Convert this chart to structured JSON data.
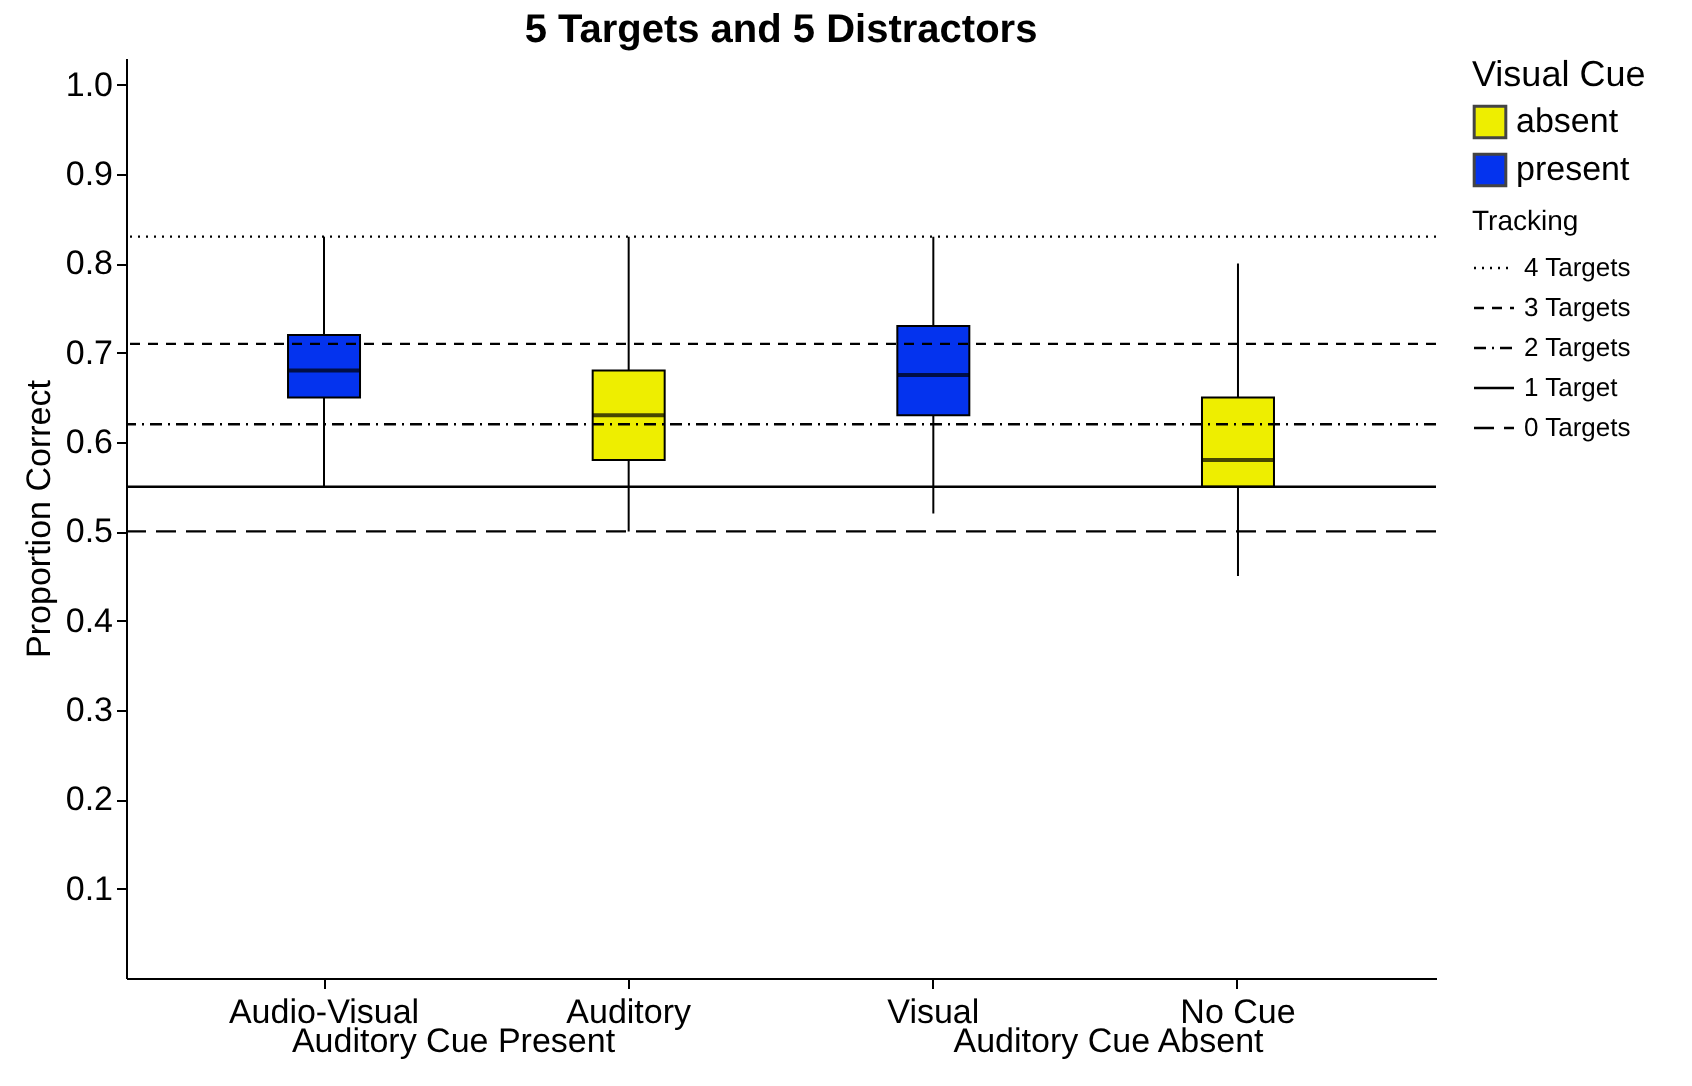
{
  "chart_data": {
    "type": "box",
    "title": "5 Targets and 5 Distractors",
    "ylabel": "Proportion Correct",
    "legend_title": "Visual Cue",
    "legend": "right",
    "categories": [
      "Audio-Visual",
      "Auditory",
      "Visual",
      "No Cue"
    ],
    "series": [
      {
        "name": "absent",
        "color": "#eeee00",
        "boxes": [
          null,
          {
            "low": 0.5,
            "q1": 0.58,
            "median": 0.63,
            "q3": 0.68,
            "high": 0.83
          },
          null,
          {
            "low": 0.45,
            "q1": 0.55,
            "median": 0.58,
            "q3": 0.65,
            "high": 0.8
          }
        ]
      },
      {
        "name": "present",
        "color": "#0433ee",
        "boxes": [
          {
            "low": 0.55,
            "q1": 0.65,
            "median": 0.68,
            "q3": 0.72,
            "high": 0.83
          },
          null,
          {
            "low": 0.52,
            "q1": 0.63,
            "median": 0.675,
            "q3": 0.73,
            "high": 0.83
          },
          null
        ]
      }
    ],
    "ylim": [
      0,
      1.03
    ],
    "yticks": [
      {
        "value": 0.1,
        "label": "0.1"
      },
      {
        "value": 0.2,
        "label": "0.2"
      },
      {
        "value": 0.3,
        "label": "0.3"
      },
      {
        "value": 0.4,
        "label": "0.4"
      },
      {
        "value": 0.5,
        "label": "0.5"
      },
      {
        "value": 0.6,
        "label": "0.6"
      },
      {
        "value": 0.7,
        "label": "0.7"
      },
      {
        "value": 0.8,
        "label": "0.8"
      },
      {
        "value": 0.9,
        "label": "0.9"
      },
      {
        "value": 1,
        "label": "1.0"
      }
    ],
    "grid": false,
    "ref_lines": [
      {
        "axis": "y",
        "value": 0.83,
        "label": "4 Targets",
        "line_style": "dotted"
      },
      {
        "axis": "y",
        "value": 0.71,
        "label": "3 Targets",
        "line_style": "dashed"
      },
      {
        "axis": "y",
        "value": 0.62,
        "label": "2 Targets",
        "line_style": "dashdot"
      },
      {
        "axis": "y",
        "value": 0.55,
        "label": "1 Target",
        "line_style": "solid"
      },
      {
        "axis": "y",
        "value": 0.5,
        "label": "0 Targets",
        "line_style": "longdash"
      }
    ],
    "annotations": [
      "Auditory Cue Present",
      "Auditory Cue Absent",
      "Tracking"
    ]
  }
}
